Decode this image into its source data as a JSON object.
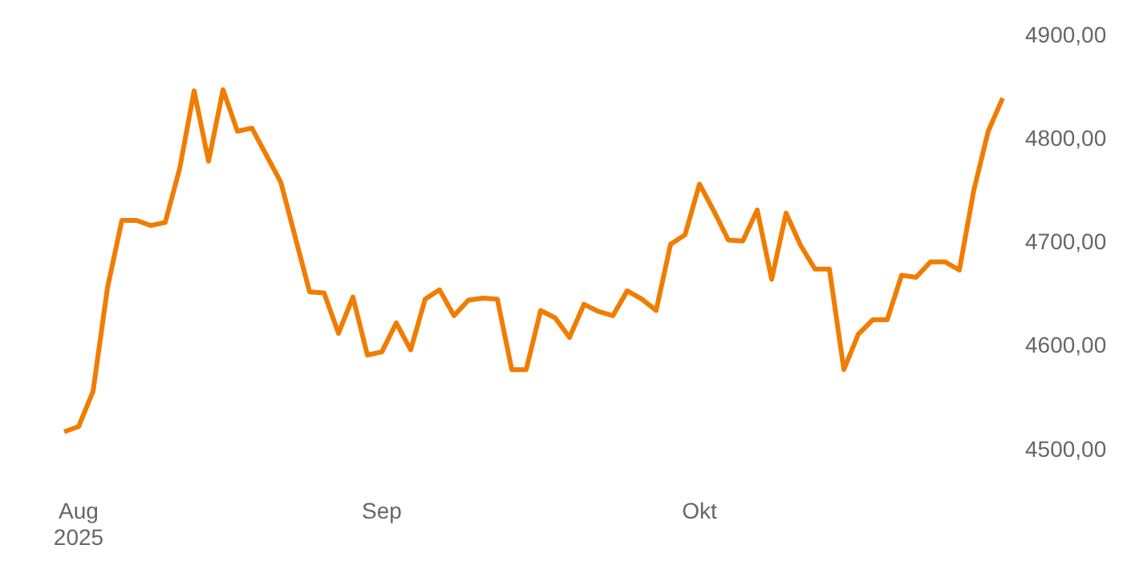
{
  "chart_data": {
    "type": "line",
    "categories": [
      null,
      "Aug\n2025",
      null,
      null,
      null,
      null,
      null,
      null,
      null,
      null,
      null,
      null,
      null,
      null,
      null,
      null,
      null,
      null,
      null,
      null,
      null,
      null,
      "Sep",
      null,
      null,
      null,
      null,
      null,
      null,
      null,
      null,
      null,
      null,
      null,
      null,
      null,
      null,
      null,
      null,
      null,
      null,
      null,
      null,
      null,
      "Okt",
      null,
      null,
      null,
      null,
      null,
      null,
      null,
      null,
      null,
      null,
      null,
      null,
      null,
      null,
      null,
      null,
      null,
      null,
      null,
      null,
      null
    ],
    "series": [
      {
        "color": "#f07d00",
        "values": [
          4518,
          4523,
          4557,
          4657,
          4722,
          4722,
          4717,
          4720,
          4772,
          4847,
          4779,
          4848,
          4808,
          4811,
          4785,
          4759,
          4706,
          4653,
          4652,
          4613,
          4648,
          4592,
          4595,
          4623,
          4597,
          4646,
          4655,
          4630,
          4645,
          4647,
          4646,
          4578,
          4578,
          4635,
          4628,
          4609,
          4641,
          4634,
          4630,
          4654,
          4646,
          4635,
          4699,
          4708,
          4757,
          4731,
          4703,
          4702,
          4732,
          4665,
          4729,
          4698,
          4675,
          4675,
          4578,
          4612,
          4626,
          4626,
          4669,
          4667,
          4682,
          4682,
          4674,
          4751,
          4808,
          4840
        ]
      }
    ],
    "ylim": [
      4500,
      4900
    ],
    "yticks": [
      {
        "value": 4500,
        "label": "4500,00"
      },
      {
        "value": 4600,
        "label": "4600,00"
      },
      {
        "value": 4700,
        "label": "4700,00"
      },
      {
        "value": 4800,
        "label": "4800,00"
      },
      {
        "value": 4900,
        "label": "4900,00"
      }
    ],
    "grid": false,
    "legend": false,
    "marker": "none",
    "line_style": "solid"
  }
}
